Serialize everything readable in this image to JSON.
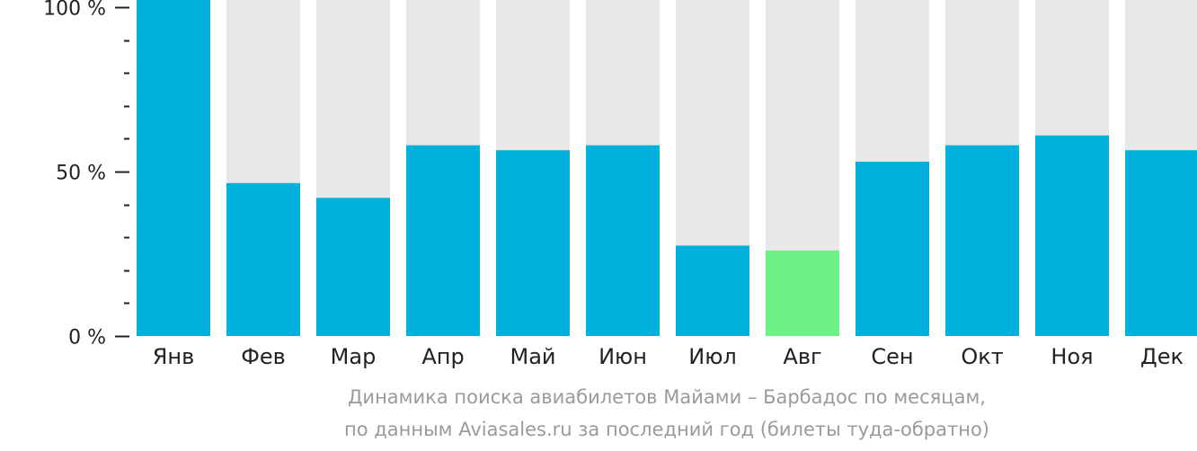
{
  "chart_data": {
    "type": "bar",
    "categories": [
      "Янв",
      "Фев",
      "Мар",
      "Апр",
      "Май",
      "Июн",
      "Июл",
      "Авг",
      "Сен",
      "Окт",
      "Ноя",
      "Дек"
    ],
    "values": [
      100,
      46.5,
      42,
      58,
      56.5,
      58,
      27.5,
      26,
      53,
      58,
      61,
      56.5
    ],
    "highlight_index": 7,
    "ylim": [
      0,
      100
    ],
    "yticks": [
      {
        "value": 0,
        "label": "0 %"
      },
      {
        "value": 50,
        "label": "50 %"
      },
      {
        "value": 100,
        "label": "100 %"
      }
    ],
    "minor_tick_step": 10,
    "caption_line1": "Динамика поиска авиабилетов Майами – Барбадос по месяцам,",
    "caption_line2": "по данным Aviasales.ru за последний год (билеты туда-обратно)",
    "colors": {
      "bar": "#00b0dd",
      "highlight": "#6df086",
      "background_bar": "#e8e8e8",
      "axis": "#222222",
      "caption": "#9a9a9a"
    }
  }
}
